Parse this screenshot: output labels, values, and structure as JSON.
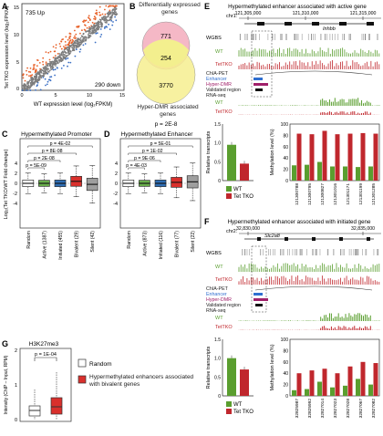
{
  "panels": {
    "A": {
      "label": "A",
      "top_note": "735 Up",
      "bottom_note": "290 down",
      "ylabel": "Tet TKO expression level (log₂FPKM)",
      "xlabel": "WT expression level (log₂FPKM)",
      "ticks": [
        "0",
        "5",
        "10",
        "15"
      ]
    },
    "B": {
      "label": "B",
      "title": "Differentially expressed genes",
      "bottom_title": "Hyper-DMR associated genes",
      "top_count": "771",
      "overlap_count": "254",
      "bottom_count": "3770",
      "pvalue": "p = 2E-8"
    },
    "C": {
      "label": "C",
      "title": "Hypermethylated Promoter",
      "ylabel": "Log₂(Tet TKO/WT Fold change)",
      "categories": [
        "Random",
        "Active (1387)",
        "Initiated (455)",
        "Bivalent (29)",
        "Silent (42)"
      ],
      "pvals": [
        "p = 4E-02",
        "p = 8E-08",
        "p = 2E-08",
        "p = 5E-09"
      ],
      "yticks": [
        "4",
        "2",
        "0",
        "-2",
        "-4"
      ]
    },
    "D": {
      "label": "D",
      "title": "Hypermethylated Enhancer",
      "categories": [
        "Random",
        "Active (873)",
        "Initiated (116)",
        "Bivalent (77)",
        "Silent (22)"
      ],
      "pvals": [
        "p = 5E-01",
        "p = 1E-02",
        "p = 9E-06",
        "p = 4E-03"
      ],
      "yticks": [
        "4",
        "2",
        "0",
        "-2",
        "-4"
      ]
    },
    "E": {
      "label": "E",
      "title": "Hypermethylated enhancer associated with active gene",
      "chr": "chr1:",
      "coords": [
        "121,305,000",
        "121,310,000",
        "121,315,000"
      ],
      "gene": "Inhbb",
      "tracks": [
        "WGBS",
        "WT",
        "TetTKO",
        "ChIA-PET",
        "Enhancer",
        "Hyper-DMR",
        "Validated region",
        "RNA-seq",
        "WT",
        "TetTKO"
      ],
      "bar_ylabel": "Relative transcripts",
      "meth_ylabel": "Methylation level (%)",
      "yticks_left": [
        "1.5",
        "1.0",
        "0.5",
        "0"
      ],
      "yticks_right": [
        "100",
        "80",
        "60",
        "40",
        "20",
        "0"
      ],
      "cpg": [
        "121300788",
        "121300795",
        "121300827",
        "121301016",
        "121301171",
        "121301199",
        "121301285"
      ],
      "legend": [
        "WT",
        "Tet TKO"
      ]
    },
    "F": {
      "label": "F",
      "title": "Hypermethylated enhancer associated with initiated gene",
      "chr": "chr2:",
      "coords": [
        "32,830,000",
        "32,835,000"
      ],
      "gene": "Slc2a8",
      "tracks": [
        "WGBS",
        "WT",
        "TetTKO",
        "ChIA-PET",
        "Enhancer",
        "Hyper-DMR",
        "Validated region",
        "RNA-seq",
        "WT",
        "TetTKO"
      ],
      "bar_ylabel": "Relative transcripts",
      "meth_ylabel": "Methylation level (%)",
      "yticks_left": [
        "1.5",
        "1.0",
        "0.5",
        "0"
      ],
      "yticks_right": [
        "100",
        "80",
        "60",
        "40",
        "20",
        "0"
      ],
      "cpg": [
        "32825987",
        "32825992",
        "32827014",
        "32827023",
        "32827028",
        "32827067",
        "32827082"
      ],
      "legend": [
        "WT",
        "Tet TKO"
      ]
    },
    "G": {
      "label": "G",
      "title": "H3K27me3",
      "ylabel": "Intensity (ChIP – Input, RPM)",
      "pvalue": "p = 1E-04",
      "yticks": [
        "2",
        "1",
        "0"
      ],
      "legend": [
        "Random",
        "Hypermethylated enhancers associated with bivalent genes"
      ]
    }
  },
  "colors": {
    "wt": "#5a9e2f",
    "tko": "#c0272d",
    "active": "#6ab04c",
    "initiated": "#2e6db4",
    "bivalent": "#d9302c",
    "silent": "#9e9e9e",
    "yellow": "#f6ef8f",
    "pink": "#f5b8c6",
    "blue": "#2f6fd0",
    "magenta": "#a0206a"
  },
  "chart_data": [
    {
      "type": "scatter",
      "panel": "A",
      "xlim": [
        0,
        15
      ],
      "ylim": [
        0,
        15
      ],
      "note": "WT vs Tet TKO expression; 735 up, 290 down"
    },
    {
      "type": "bar",
      "panel": "B",
      "categories": [
        "Differentially expressed only",
        "Overlap",
        "Hyper-DMR only"
      ],
      "values": [
        771,
        254,
        3770
      ]
    },
    {
      "type": "box",
      "panel": "C",
      "categories": [
        "Random",
        "Active (1387)",
        "Initiated (455)",
        "Bivalent (29)",
        "Silent (42)"
      ],
      "ylim": [
        -4,
        4
      ],
      "medians": [
        0,
        0,
        0,
        0.4,
        -0.2
      ]
    },
    {
      "type": "box",
      "panel": "D",
      "categories": [
        "Random",
        "Active (873)",
        "Initiated (116)",
        "Bivalent (77)",
        "Silent (22)"
      ],
      "ylim": [
        -4,
        4
      ],
      "medians": [
        0,
        0,
        0,
        0.2,
        0.3
      ]
    },
    {
      "type": "bar",
      "panel": "E-left",
      "categories": [
        "WT",
        "Tet TKO"
      ],
      "values": [
        0.95,
        0.45
      ],
      "ylim": [
        0,
        1.5
      ]
    },
    {
      "type": "bar",
      "panel": "E-right",
      "categories": [
        "121300788",
        "121300795",
        "121300827",
        "121301016",
        "121301171",
        "121301199",
        "121301285"
      ],
      "series": [
        {
          "name": "WT",
          "values": [
            27,
            28,
            33,
            25,
            25,
            24,
            25
          ]
        },
        {
          "name": "Tet TKO",
          "values": [
            83,
            82,
            88,
            82,
            83,
            84,
            83
          ]
        }
      ],
      "ylim": [
        0,
        100
      ]
    },
    {
      "type": "bar",
      "panel": "F-left",
      "categories": [
        "WT",
        "Tet TKO"
      ],
      "values": [
        1.0,
        0.7
      ],
      "ylim": [
        0,
        1.5
      ]
    },
    {
      "type": "bar",
      "panel": "F-right",
      "categories": [
        "32825987",
        "32825992",
        "32827014",
        "32827023",
        "32827028",
        "32827067",
        "32827082"
      ],
      "series": [
        {
          "name": "WT",
          "values": [
            10,
            12,
            25,
            15,
            18,
            30,
            20
          ]
        },
        {
          "name": "Tet TKO",
          "values": [
            40,
            45,
            48,
            40,
            52,
            60,
            58
          ]
        }
      ],
      "ylim": [
        0,
        100
      ]
    },
    {
      "type": "box",
      "panel": "G",
      "categories": [
        "Random",
        "Hypermethylated enhancers associated with bivalent genes"
      ],
      "ylim": [
        0,
        2
      ],
      "medians": [
        0.35,
        0.6
      ]
    }
  ]
}
